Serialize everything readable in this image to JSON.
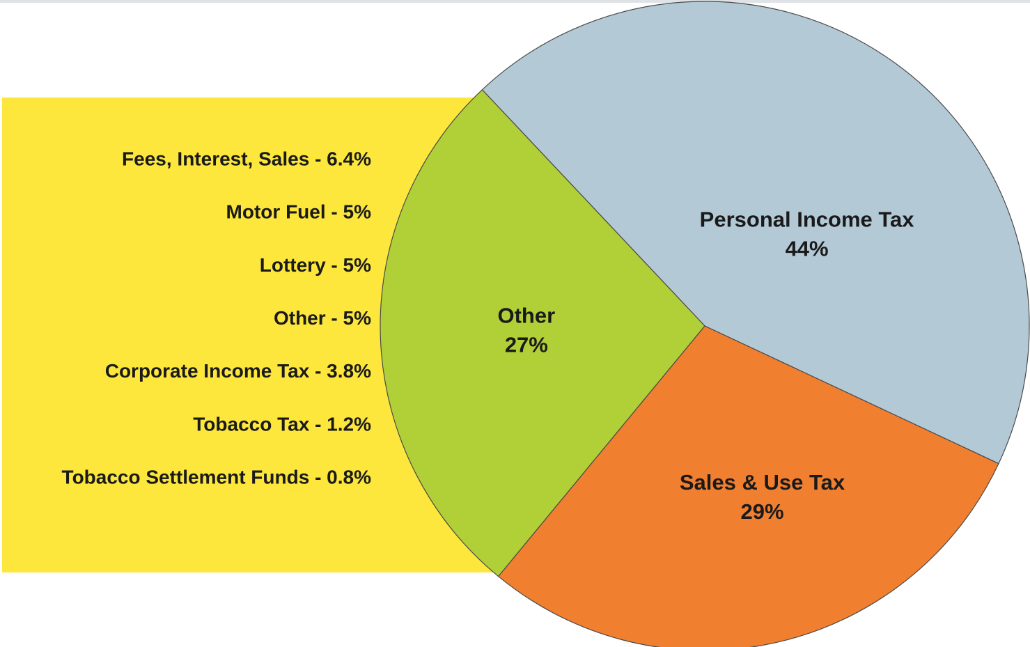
{
  "chart_data": {
    "type": "pie",
    "categories": [
      "Personal Income Tax",
      "Sales & Use Tax",
      "Other"
    ],
    "values": [
      44,
      29,
      27
    ],
    "value_labels": [
      "44%",
      "29%",
      "27%"
    ],
    "colors": [
      "#b3c9d6",
      "#f07f30",
      "#b1cf37"
    ],
    "breakdown": [
      "Fees, Interest, Sales - 6.4%",
      "Motor Fuel - 5%",
      "Lottery - 5%",
      "Other - 5%",
      "Corporate Income Tax - 3.8%",
      "Tobacco Tax - 1.2%",
      "Tobacco Settlement Funds - 0.8%"
    ]
  }
}
